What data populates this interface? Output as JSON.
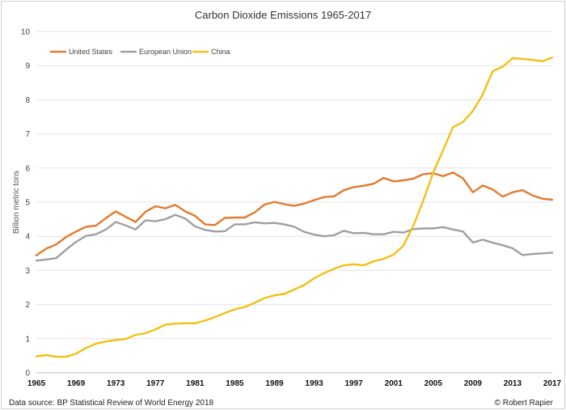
{
  "chart_data": {
    "type": "line",
    "title": "Carbon Dioxide Emissions 1965-2017",
    "xlabel": "",
    "ylabel": "Billion metric tons",
    "ylim": [
      0,
      10
    ],
    "yticks": [
      0,
      1,
      2,
      3,
      4,
      5,
      6,
      7,
      8,
      9,
      10
    ],
    "xlim": [
      1965,
      2017
    ],
    "xticks": [
      1965,
      1969,
      1973,
      1977,
      1981,
      1985,
      1989,
      1993,
      1997,
      2001,
      2005,
      2009,
      2013,
      2017
    ],
    "grid": true,
    "legend_position": "top-left",
    "x": [
      1965,
      1966,
      1967,
      1968,
      1969,
      1970,
      1971,
      1972,
      1973,
      1974,
      1975,
      1976,
      1977,
      1978,
      1979,
      1980,
      1981,
      1982,
      1983,
      1984,
      1985,
      1986,
      1987,
      1988,
      1989,
      1990,
      1991,
      1992,
      1993,
      1994,
      1995,
      1996,
      1997,
      1998,
      1999,
      2000,
      2001,
      2002,
      2003,
      2004,
      2005,
      2006,
      2007,
      2008,
      2009,
      2010,
      2011,
      2012,
      2013,
      2014,
      2015,
      2016,
      2017
    ],
    "series": [
      {
        "name": "United States",
        "color": "#e07b2e",
        "values": [
          3.44,
          3.64,
          3.76,
          3.98,
          4.14,
          4.28,
          4.31,
          4.53,
          4.73,
          4.57,
          4.42,
          4.72,
          4.88,
          4.82,
          4.92,
          4.73,
          4.6,
          4.35,
          4.33,
          4.54,
          4.55,
          4.55,
          4.7,
          4.93,
          5.01,
          4.94,
          4.89,
          4.96,
          5.06,
          5.15,
          5.17,
          5.35,
          5.44,
          5.48,
          5.54,
          5.71,
          5.61,
          5.64,
          5.69,
          5.82,
          5.85,
          5.76,
          5.87,
          5.7,
          5.29,
          5.49,
          5.37,
          5.16,
          5.29,
          5.35,
          5.2,
          5.1,
          5.07
        ]
      },
      {
        "name": "European Union",
        "color": "#a0a0a0",
        "values": [
          3.29,
          3.32,
          3.36,
          3.61,
          3.84,
          4.01,
          4.06,
          4.2,
          4.42,
          4.32,
          4.2,
          4.47,
          4.44,
          4.5,
          4.63,
          4.52,
          4.29,
          4.19,
          4.14,
          4.15,
          4.35,
          4.35,
          4.41,
          4.38,
          4.39,
          4.35,
          4.28,
          4.13,
          4.05,
          4.0,
          4.03,
          4.16,
          4.09,
          4.1,
          4.06,
          4.06,
          4.13,
          4.11,
          4.21,
          4.23,
          4.23,
          4.27,
          4.2,
          4.14,
          3.82,
          3.9,
          3.81,
          3.74,
          3.65,
          3.45,
          3.48,
          3.5,
          3.52
        ]
      },
      {
        "name": "China",
        "color": "#f2c014",
        "values": [
          0.48,
          0.52,
          0.47,
          0.47,
          0.56,
          0.73,
          0.85,
          0.92,
          0.96,
          0.99,
          1.11,
          1.16,
          1.27,
          1.41,
          1.44,
          1.45,
          1.45,
          1.53,
          1.63,
          1.75,
          1.86,
          1.93,
          2.05,
          2.19,
          2.27,
          2.31,
          2.44,
          2.57,
          2.77,
          2.92,
          3.05,
          3.15,
          3.18,
          3.15,
          3.27,
          3.34,
          3.46,
          3.73,
          4.31,
          5.05,
          5.87,
          6.52,
          7.2,
          7.35,
          7.67,
          8.16,
          8.84,
          8.97,
          9.22,
          9.2,
          9.17,
          9.13,
          9.24
        ]
      }
    ],
    "source": "Data source: BP Statistical Review of World Energy 2018",
    "credit": "© Robert Rapier"
  }
}
